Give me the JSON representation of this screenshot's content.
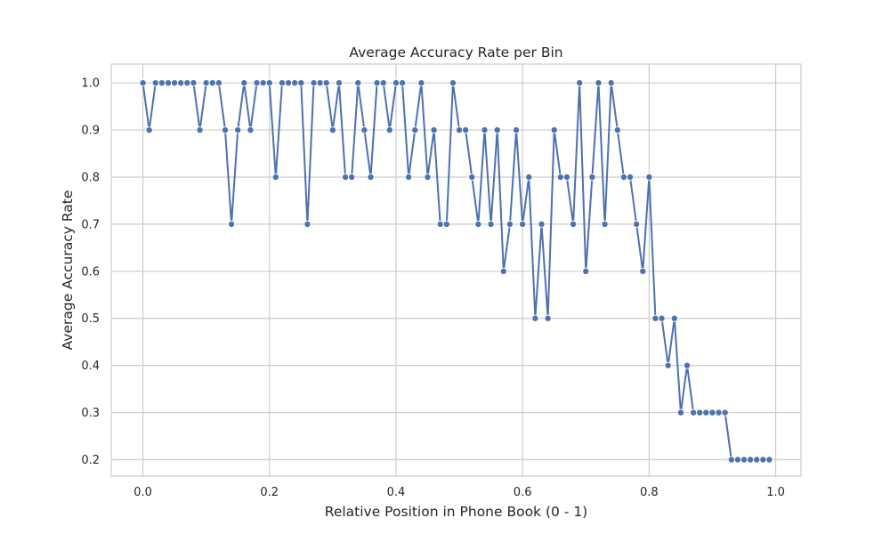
{
  "chart_data": {
    "type": "line",
    "title": "Average Accuracy Rate per Bin",
    "xlabel": "Relative Position in Phone Book (0 - 1)",
    "ylabel": "Average Accuracy Rate",
    "xlim": [
      -0.05,
      1.04
    ],
    "ylim": [
      0.165,
      1.04
    ],
    "xticks": [
      "0.0",
      "0.2",
      "0.4",
      "0.6",
      "0.8",
      "1.0"
    ],
    "yticks": [
      "0.2",
      "0.3",
      "0.4",
      "0.5",
      "0.6",
      "0.7",
      "0.8",
      "0.9",
      "1.0"
    ],
    "grid": true,
    "series_color": "#4c72b0",
    "series": [
      {
        "x": [
          0.0,
          0.01,
          0.02,
          0.03,
          0.04,
          0.05,
          0.06,
          0.07,
          0.08,
          0.09,
          0.1,
          0.11,
          0.12,
          0.13,
          0.14,
          0.15,
          0.16,
          0.17,
          0.18,
          0.19,
          0.2,
          0.21,
          0.22,
          0.23,
          0.24,
          0.25,
          0.26,
          0.27,
          0.28,
          0.29,
          0.3,
          0.31,
          0.32,
          0.33,
          0.34,
          0.35,
          0.36,
          0.37,
          0.38,
          0.39,
          0.4,
          0.41,
          0.42,
          0.43,
          0.44,
          0.45,
          0.46,
          0.47,
          0.48,
          0.49,
          0.5,
          0.51,
          0.52,
          0.53,
          0.54,
          0.55,
          0.56,
          0.57,
          0.58,
          0.59,
          0.6,
          0.61,
          0.62,
          0.63,
          0.64,
          0.65,
          0.66,
          0.67,
          0.68,
          0.69,
          0.7,
          0.71,
          0.72,
          0.73,
          0.74,
          0.75,
          0.76,
          0.77,
          0.78,
          0.79,
          0.8,
          0.81,
          0.82,
          0.83,
          0.84,
          0.85,
          0.86,
          0.87,
          0.88,
          0.89,
          0.9,
          0.91,
          0.92,
          0.93,
          0.94,
          0.95,
          0.96,
          0.97,
          0.98,
          0.99
        ],
        "values": [
          1.0,
          0.9,
          1.0,
          1.0,
          1.0,
          1.0,
          1.0,
          1.0,
          1.0,
          0.9,
          1.0,
          1.0,
          1.0,
          0.9,
          0.7,
          0.9,
          1.0,
          0.9,
          1.0,
          1.0,
          1.0,
          0.8,
          1.0,
          1.0,
          1.0,
          1.0,
          0.7,
          1.0,
          1.0,
          1.0,
          0.9,
          1.0,
          0.8,
          0.8,
          1.0,
          0.9,
          0.8,
          1.0,
          1.0,
          0.9,
          1.0,
          1.0,
          0.8,
          0.9,
          1.0,
          0.8,
          0.9,
          0.7,
          0.7,
          1.0,
          0.9,
          0.9,
          0.8,
          0.7,
          0.9,
          0.7,
          0.9,
          0.6,
          0.7,
          0.9,
          0.7,
          0.8,
          0.5,
          0.7,
          0.5,
          0.9,
          0.8,
          0.8,
          0.7,
          1.0,
          0.6,
          0.8,
          1.0,
          0.7,
          1.0,
          0.9,
          0.8,
          0.8,
          0.7,
          0.6,
          0.8,
          0.5,
          0.5,
          0.4,
          0.5,
          0.3,
          0.4,
          0.3,
          0.3,
          0.3,
          0.3,
          0.3,
          0.3,
          0.2,
          0.2,
          0.2,
          0.2,
          0.2,
          0.2,
          0.2
        ]
      }
    ]
  }
}
